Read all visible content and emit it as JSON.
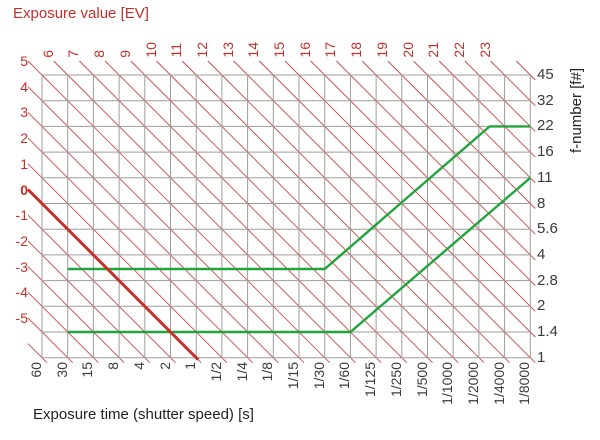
{
  "title": "Exposure value [EV]",
  "axes": {
    "top": {
      "ticks": [
        "6",
        "7",
        "8",
        "9",
        "10",
        "11",
        "12",
        "13",
        "14",
        "15",
        "16",
        "17",
        "18",
        "19",
        "20",
        "21",
        "22",
        "23"
      ]
    },
    "left": {
      "ticks": [
        "5",
        "4",
        "3",
        "2",
        "1",
        "0",
        "-1",
        "-2",
        "-3",
        "-4",
        "-5"
      ],
      "bold_tick": "0"
    },
    "right": {
      "label": "f-number [f#]",
      "ticks": [
        "45",
        "32",
        "22",
        "16",
        "11",
        "8",
        "5.6",
        "4",
        "2.8",
        "2",
        "1.4",
        "1"
      ]
    },
    "bottom": {
      "label": "Exposure time (shutter speed) [s]",
      "ticks": [
        "60",
        "30",
        "15",
        "8",
        "4",
        "2",
        "1",
        "1/2",
        "1/4",
        "1/8",
        "1/15",
        "1/30",
        "1/60",
        "1/125",
        "1/250",
        "1/500",
        "1/1000",
        "1/2000",
        "1/4000",
        "1/8000"
      ]
    }
  },
  "colors": {
    "accent_red": "#c62f2a",
    "hatch_red": "#c84a44",
    "grid_gray": "#9d9d9d",
    "line_green": "#21a43d",
    "text_dark": "#3b3b3b"
  },
  "chart_data": {
    "type": "line",
    "title": "Exposure value [EV]",
    "xlabel": "Exposure time (shutter speed) [s]",
    "ylabel_right": "f-number [f#]",
    "x_categories": [
      "60",
      "30",
      "15",
      "8",
      "4",
      "2",
      "1",
      "1/2",
      "1/4",
      "1/8",
      "1/15",
      "1/30",
      "1/60",
      "1/125",
      "1/250",
      "1/500",
      "1/1000",
      "1/2000",
      "1/4000",
      "1/8000"
    ],
    "right_axis_f_numbers": [
      45,
      32,
      22,
      16,
      11,
      8,
      5.6,
      4,
      2.8,
      2,
      1.4,
      1
    ],
    "left_axis_ev": [
      5,
      4,
      3,
      2,
      1,
      0,
      -1,
      -2,
      -3,
      -4,
      -5
    ],
    "top_axis_ev": [
      6,
      7,
      8,
      9,
      10,
      11,
      12,
      13,
      14,
      15,
      16,
      17,
      18,
      19,
      20,
      21,
      22,
      23
    ],
    "grid": "1-stop squares with red iso-EV diagonals every 1 EV",
    "series": [
      {
        "name": "upper-green-line",
        "color": "#21a43d",
        "points": [
          {
            "t": "30",
            "f": 3.4
          },
          {
            "t": "1/30",
            "f": 3.4
          },
          {
            "t": "~1/3000",
            "f": 22
          },
          {
            "t": "1/8000",
            "f": 22
          }
        ],
        "points_grid": [
          [
            1,
            7.55
          ],
          [
            11,
            7.55
          ],
          [
            17.42,
            2
          ],
          [
            19,
            2
          ]
        ],
        "description": "constant ~f/3.4 from 30 s to 1/30 s, rising to f/22, then constant f/22 to 1/8000 s"
      },
      {
        "name": "lower-green-line",
        "color": "#21a43d",
        "points": [
          {
            "t": "30",
            "f": 1.4
          },
          {
            "t": "1/60",
            "f": 1.4
          },
          {
            "t": "1/8000",
            "f": 11
          }
        ],
        "points_grid": [
          [
            1,
            10
          ],
          [
            12,
            10
          ],
          [
            19,
            4
          ]
        ],
        "description": "constant f/1.4 from 30 s to 1/60 s, rising to f/11 at 1/8000 s"
      },
      {
        "name": "ev0-reference-line",
        "color": "#c62f2a",
        "points": [
          {
            "t": "60",
            "f": 8
          },
          {
            "t": "1",
            "f": 1
          }
        ],
        "points_grid": [
          [
            0,
            5
          ],
          [
            6,
            11
          ]
        ],
        "description": "thick red EV 0 diagonal (f/1 at 1 s)"
      }
    ]
  }
}
